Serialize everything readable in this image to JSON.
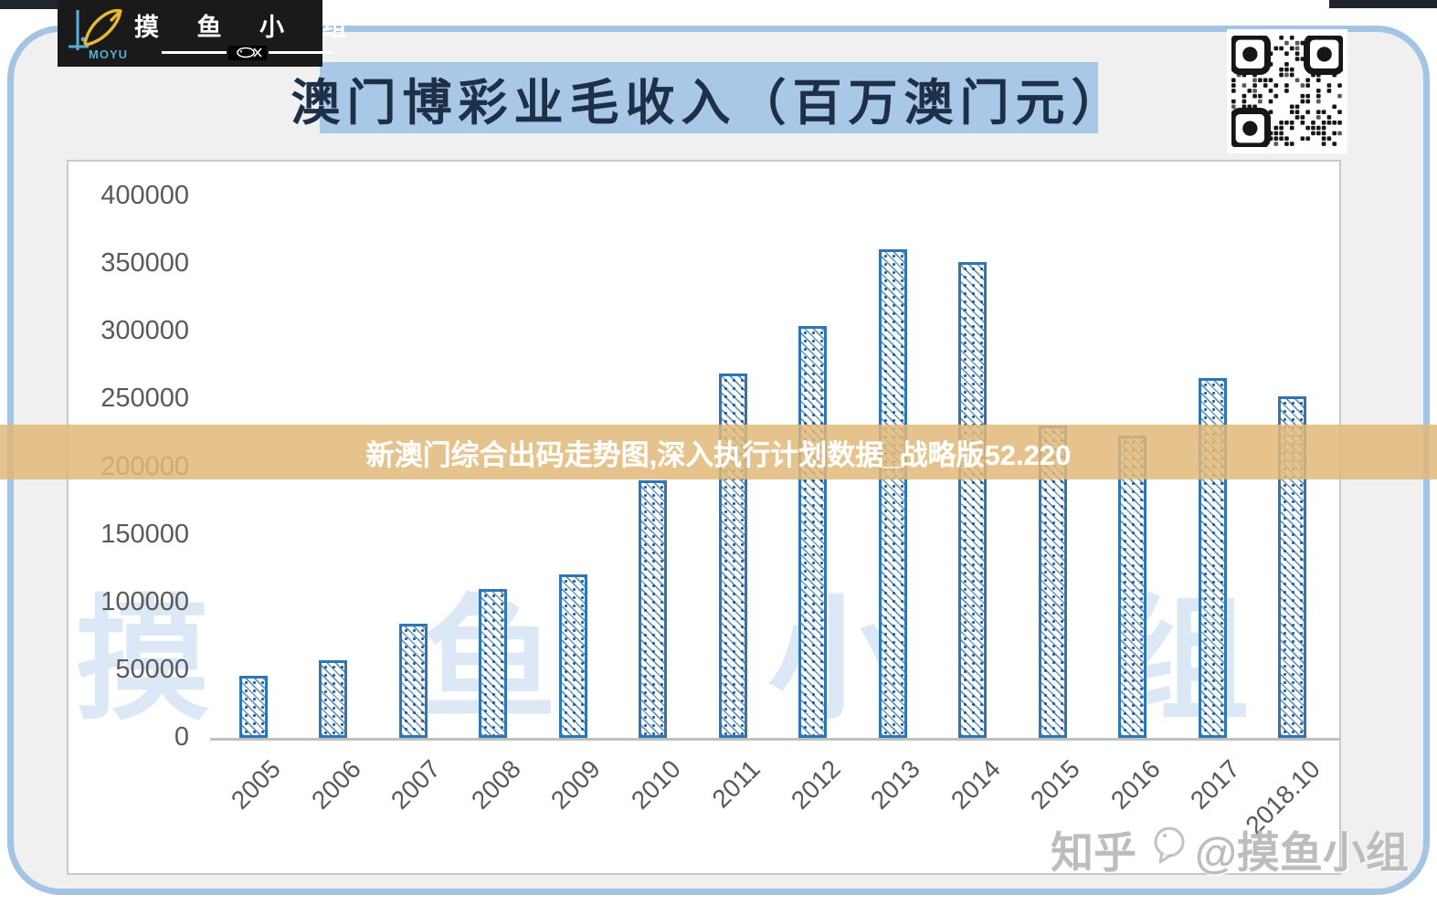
{
  "header": {
    "logo": {
      "brand_mark": "MOYU",
      "brand_text": "摸 鱼 小 组",
      "icons": [
        "fishing-rod-icon",
        "fish-icon"
      ]
    },
    "title": "澳门博彩业毛收入（百万澳门元）",
    "qr": "qr-code"
  },
  "overlay_banner": {
    "text": "新澳门综合出码走势图,深入执行计划数据_战略版52.220",
    "band_color": "#e2b878"
  },
  "watermarks": {
    "background_text": "摸 鱼 小 组",
    "zhihu_prefix": "知乎",
    "zhihu_suffix": "@摸鱼小组"
  },
  "chart_data": {
    "type": "bar",
    "title": "澳门博彩业毛收入（百万澳门元）",
    "categories": [
      "2005",
      "2006",
      "2007",
      "2008",
      "2009",
      "2010",
      "2011",
      "2012",
      "2013",
      "2014",
      "2015",
      "2016",
      "2017",
      "2018.10"
    ],
    "values": [
      46000,
      57500,
      84000,
      110000,
      120500,
      190000,
      269000,
      304000,
      361000,
      351500,
      231000,
      223000,
      266000,
      252000
    ],
    "xlabel": "",
    "ylabel": "",
    "ylim": [
      0,
      400000
    ],
    "ytick_step": 50000,
    "grid": false,
    "legend": null,
    "bar_style": "diagonal-hatch",
    "bar_color": "#2e75b6",
    "axis_text_color": "#595959"
  },
  "colors": {
    "panel_border": "#a4c4e3",
    "panel_bg": "#f0f0f0",
    "title_bg": "#a9c7e7",
    "title_text": "#1e3048",
    "top_strip": "#20242c"
  }
}
